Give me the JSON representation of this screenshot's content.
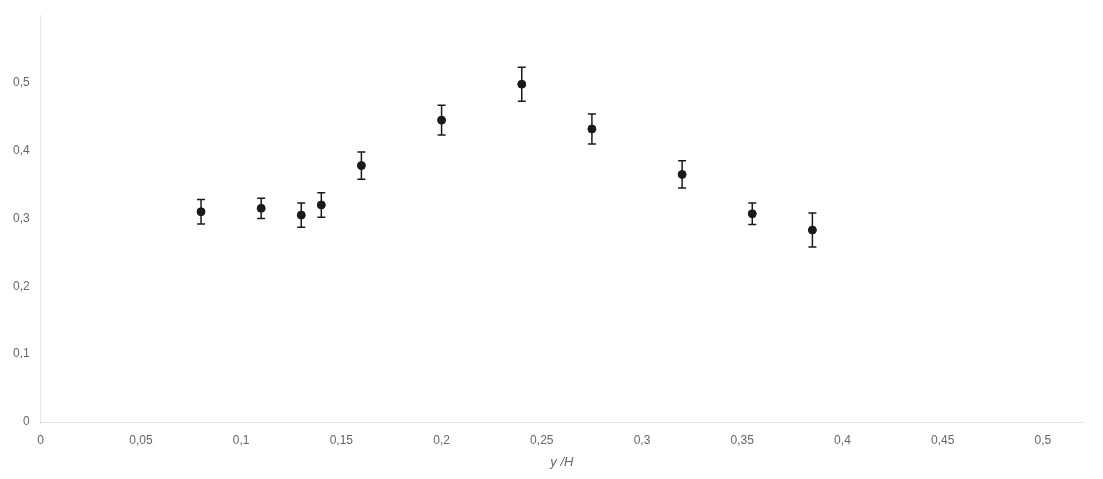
{
  "chart_data": {
    "type": "scatter",
    "x": [
      0.08,
      0.11,
      0.13,
      0.14,
      0.16,
      0.2,
      0.24,
      0.275,
      0.32,
      0.355,
      0.385
    ],
    "values": [
      0.31,
      0.315,
      0.305,
      0.32,
      0.378,
      0.445,
      0.498,
      0.432,
      0.365,
      0.307,
      0.283
    ],
    "yerr": [
      0.018,
      0.015,
      0.018,
      0.018,
      0.02,
      0.022,
      0.025,
      0.022,
      0.02,
      0.016,
      0.025
    ],
    "xlabel": "y /H",
    "xlim": [
      0,
      0.52
    ],
    "ylim": [
      0,
      0.6
    ],
    "xticks": [
      0,
      {
        "value": 0.05,
        "label": "0,05"
      },
      {
        "value": 0.1,
        "label": "0,1"
      },
      {
        "value": 0.15,
        "label": "0,15"
      },
      {
        "value": 0.2,
        "label": "0,2"
      },
      {
        "value": 0.25,
        "label": "0,25"
      },
      {
        "value": 0.3,
        "label": "0,3"
      },
      {
        "value": 0.35,
        "label": "0,35"
      },
      {
        "value": 0.4,
        "label": "0,4"
      },
      {
        "value": 0.45,
        "label": "0,45"
      },
      {
        "value": 0.5,
        "label": "0,5"
      }
    ],
    "yticks": [
      0,
      {
        "value": 0.1,
        "label": "0,1"
      },
      {
        "value": 0.2,
        "label": "0,2"
      },
      {
        "value": 0.3,
        "label": "0,3"
      },
      {
        "value": 0.4,
        "label": "0,4"
      },
      {
        "value": 0.5,
        "label": "0,5"
      }
    ],
    "color": "#1a1a1a",
    "marker": "circle",
    "grid": false
  }
}
